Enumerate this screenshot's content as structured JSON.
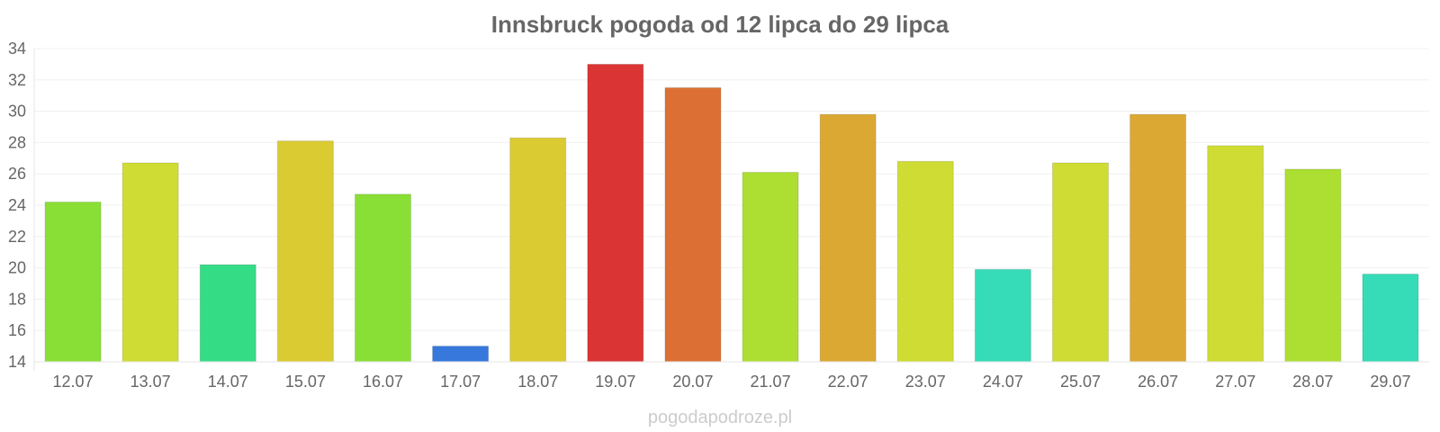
{
  "chart_data": {
    "type": "bar",
    "title": "Innsbruck pogoda od 12 lipca do 29 lipca",
    "xlabel": "",
    "ylabel": "",
    "ylim": [
      14,
      34
    ],
    "yticks": [
      14,
      16,
      18,
      20,
      22,
      24,
      26,
      28,
      30,
      32,
      34
    ],
    "grid": true,
    "legend": "none",
    "categories": [
      "12.07",
      "13.07",
      "14.07",
      "15.07",
      "16.07",
      "17.07",
      "18.07",
      "19.07",
      "20.07",
      "21.07",
      "22.07",
      "23.07",
      "24.07",
      "25.07",
      "26.07",
      "27.07",
      "28.07",
      "29.07"
    ],
    "values": [
      24.2,
      26.7,
      20.2,
      28.1,
      24.7,
      15.0,
      28.3,
      33.0,
      31.5,
      26.1,
      29.8,
      26.8,
      19.9,
      26.7,
      29.8,
      27.8,
      26.3,
      19.6
    ],
    "colors": [
      "#8adf36",
      "#cfdc33",
      "#34dc85",
      "#dbcb32",
      "#8adf36",
      "#3678dc",
      "#dbcb32",
      "#db3434",
      "#dc7034",
      "#addf33",
      "#dca834",
      "#cfdc33",
      "#35dcb7",
      "#cfdc33",
      "#dca834",
      "#cfdc33",
      "#addf33",
      "#35dcb7"
    ]
  },
  "footer": {
    "watermark": "pogodapodroze.pl"
  }
}
